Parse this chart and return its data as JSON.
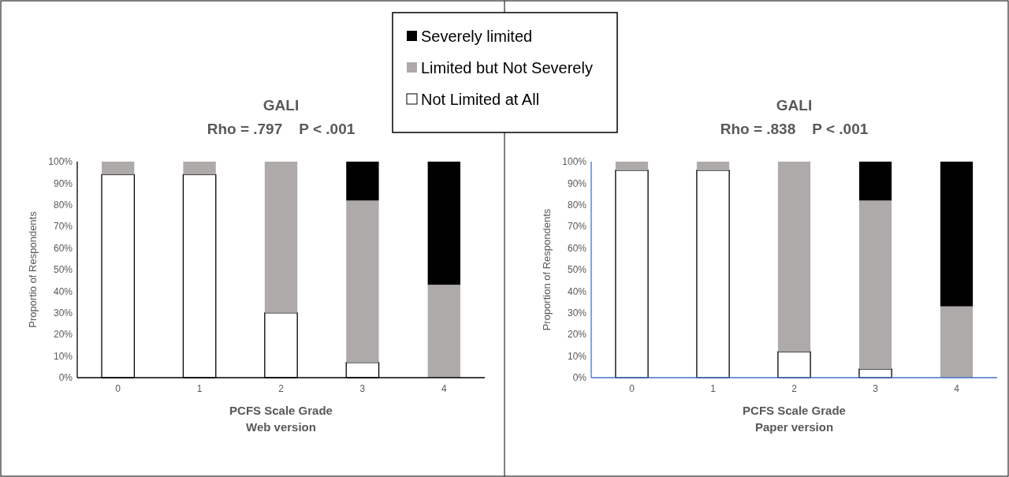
{
  "chart_data": [
    {
      "type": "bar",
      "stacked": true,
      "title": "GALI",
      "subtitle": "Rho = .797    P < .001",
      "xlabel": "PCFS Scale Grade",
      "ylabel": "Proportio of Respondents",
      "annotations": [
        "Web version"
      ],
      "categories": [
        "0",
        "1",
        "2",
        "3",
        "4"
      ],
      "ylim": [
        0,
        100
      ],
      "yticks": [
        {
          "value": 0,
          "label": "0%"
        },
        {
          "value": 10,
          "label": "10%"
        },
        {
          "value": 20,
          "label": "20%"
        },
        {
          "value": 30,
          "label": "30%"
        },
        {
          "value": 40,
          "label": "40%"
        },
        {
          "value": 50,
          "label": "50%"
        },
        {
          "value": 60,
          "label": "60%"
        },
        {
          "value": 70,
          "label": "70%"
        },
        {
          "value": 80,
          "label": "80%"
        },
        {
          "value": 90,
          "label": "90%"
        },
        {
          "value": 100,
          "label": "100%"
        }
      ],
      "legend": "top right",
      "series": [
        {
          "name": "Not Limited at All",
          "color": "#ffffff",
          "values": [
            94,
            94,
            30,
            7,
            0
          ]
        },
        {
          "name": "Limited but Not Severely",
          "color": "#aeaaaa",
          "values": [
            6,
            6,
            70,
            75,
            43
          ]
        },
        {
          "name": "Severely limited",
          "color": "#000000",
          "values": [
            0,
            0,
            0,
            18,
            57
          ]
        }
      ]
    },
    {
      "type": "bar",
      "stacked": true,
      "title": "GALI",
      "subtitle": "Rho = .838    P < .001",
      "xlabel": "PCFS Scale Grade",
      "ylabel": "Proportion of Respondents",
      "annotations": [
        "Paper version"
      ],
      "categories": [
        "0",
        "1",
        "2",
        "3",
        "4"
      ],
      "ylim": [
        0,
        100
      ],
      "yticks": [
        {
          "value": 0,
          "label": "0%"
        },
        {
          "value": 10,
          "label": "10%"
        },
        {
          "value": 20,
          "label": "20%"
        },
        {
          "value": 30,
          "label": "30%"
        },
        {
          "value": 40,
          "label": "40%"
        },
        {
          "value": 50,
          "label": "50%"
        },
        {
          "value": 60,
          "label": "60%"
        },
        {
          "value": 70,
          "label": "70%"
        },
        {
          "value": 80,
          "label": "80%"
        },
        {
          "value": 90,
          "label": "90%"
        },
        {
          "value": 100,
          "label": "100%"
        }
      ],
      "series": [
        {
          "color": "#ffffff",
          "values": [
            96,
            96,
            12,
            4,
            0
          ]
        },
        {
          "color": "#aeaaaa",
          "values": [
            4,
            4,
            88,
            78,
            33
          ]
        },
        {
          "color": "#000000",
          "values": [
            0,
            0,
            0,
            18,
            67
          ]
        }
      ]
    }
  ]
}
